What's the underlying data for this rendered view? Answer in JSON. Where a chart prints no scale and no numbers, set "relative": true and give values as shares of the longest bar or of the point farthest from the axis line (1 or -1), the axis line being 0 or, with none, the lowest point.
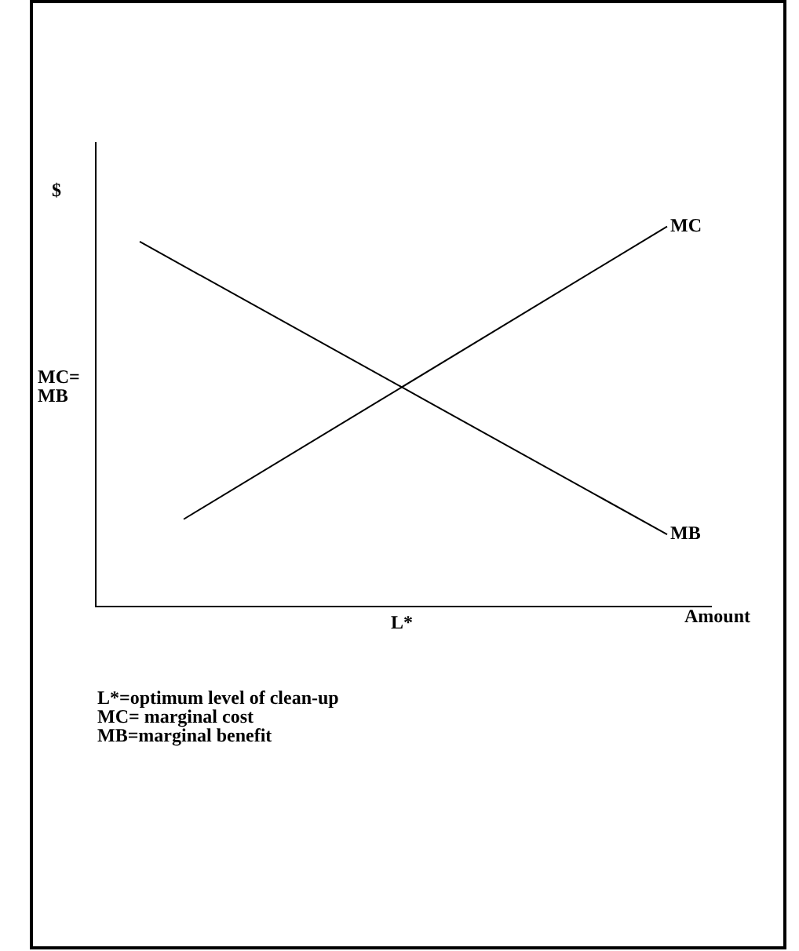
{
  "chart_data": {
    "type": "line",
    "relative": true,
    "ylabel": "$",
    "xlabel": "Amount",
    "grid": false,
    "legend": false,
    "marker": "none",
    "line_style": "solid",
    "categories": [
      null,
      null,
      null,
      null,
      null,
      null,
      null,
      null,
      null,
      null,
      null,
      null,
      null,
      null,
      null
    ],
    "series": [
      {
        "name": "MC",
        "color": "#000000",
        "values": [
          null,
          null,
          0.23,
          null,
          null,
          null,
          null,
          null,
          null,
          null,
          null,
          null,
          null,
          1.0,
          null
        ]
      },
      {
        "name": "MB",
        "color": "#000000",
        "values": [
          null,
          0.96,
          null,
          null,
          null,
          null,
          null,
          null,
          null,
          null,
          null,
          null,
          null,
          0.19,
          null
        ]
      }
    ],
    "annotations": [
      "MC=\nMB",
      "L*",
      "L*=optimum level of clean-up",
      "MC= marginal cost",
      "MB=marginal benefit"
    ]
  }
}
